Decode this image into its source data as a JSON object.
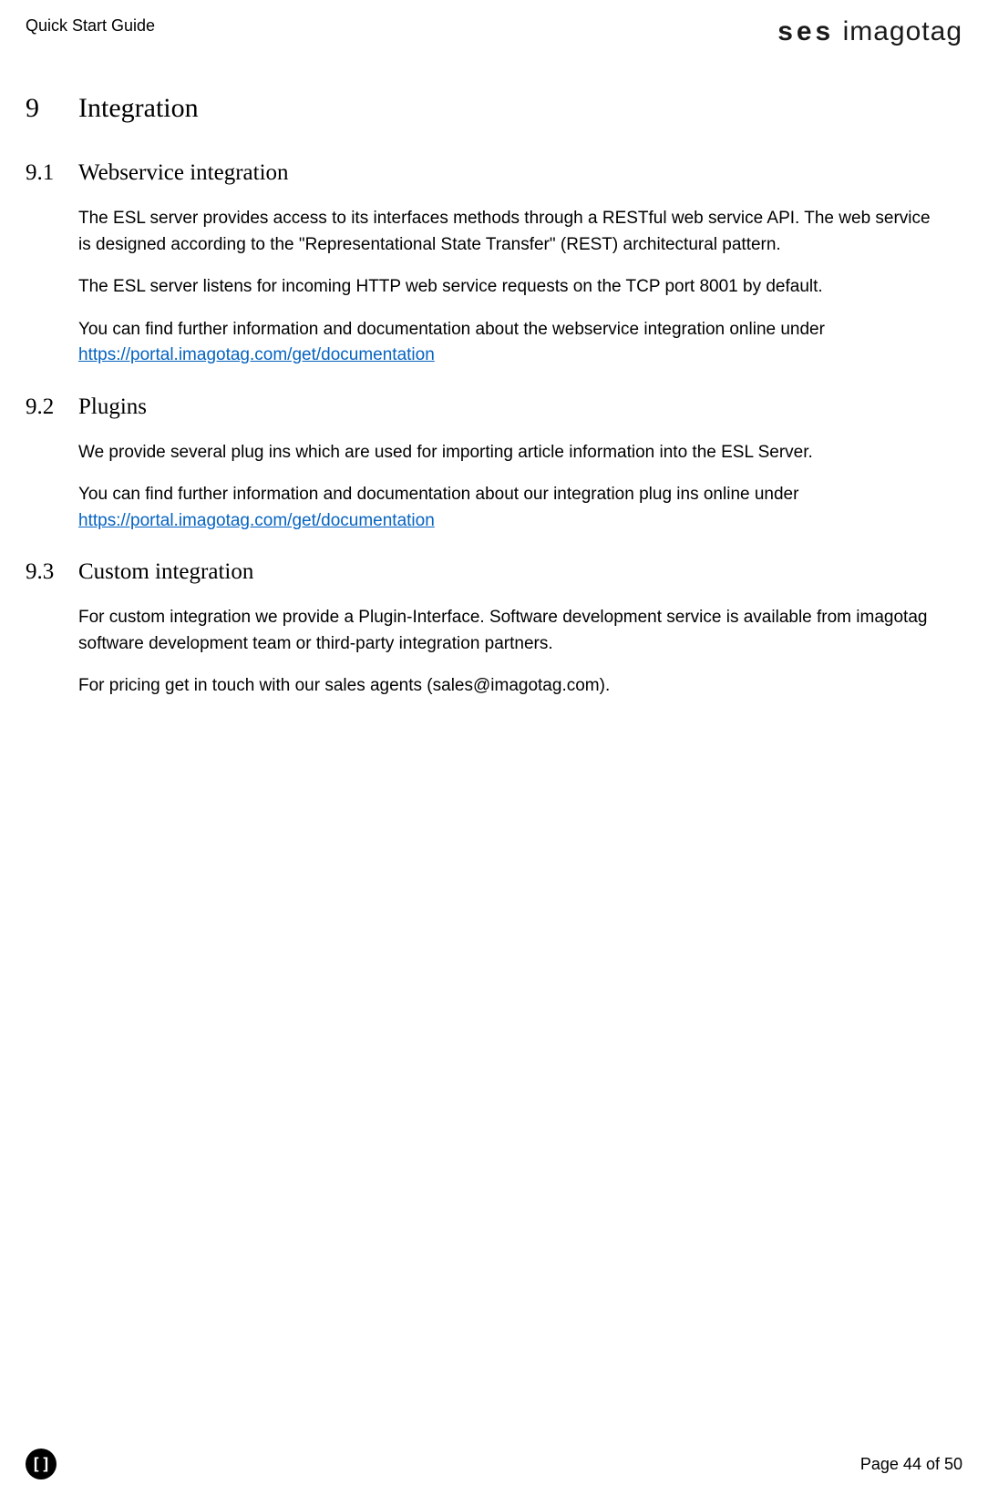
{
  "header": {
    "title": "Quick Start Guide",
    "logo_bold": "ses",
    "logo_light": " imagotag"
  },
  "sections": {
    "main": {
      "num": "9",
      "title": "Integration"
    },
    "s91": {
      "num": "9.1",
      "title": "Webservice integration",
      "p1": "The ESL server provides access to its interfaces methods through a RESTful web service API. The web service is designed according to the \"Representational State Transfer\" (REST) architectural pattern.",
      "p2": "The ESL server listens for incoming HTTP web service requests on the TCP port 8001 by default.",
      "p3_pre": "You can find further information and documentation about the webservice integration online under ",
      "p3_link": "https://portal.imagotag.com/get/documentation"
    },
    "s92": {
      "num": "9.2",
      "title": "Plugins",
      "p1": "We provide several plug ins which are used for importing article information into the ESL Server.",
      "p2_pre": "You can find further information and documentation about our integration plug ins online under ",
      "p2_link": "https://portal.imagotag.com/get/documentation"
    },
    "s93": {
      "num": "9.3",
      "title": "Custom integration",
      "p1": "For custom integration we provide a Plugin-Interface. Software development service is available from imagotag software development team or third-party integration partners.",
      "p2": "For pricing get in touch with our sales agents (sales@imagotag.com)."
    }
  },
  "footer": {
    "icon": "[]",
    "page": "Page 44 of 50"
  }
}
